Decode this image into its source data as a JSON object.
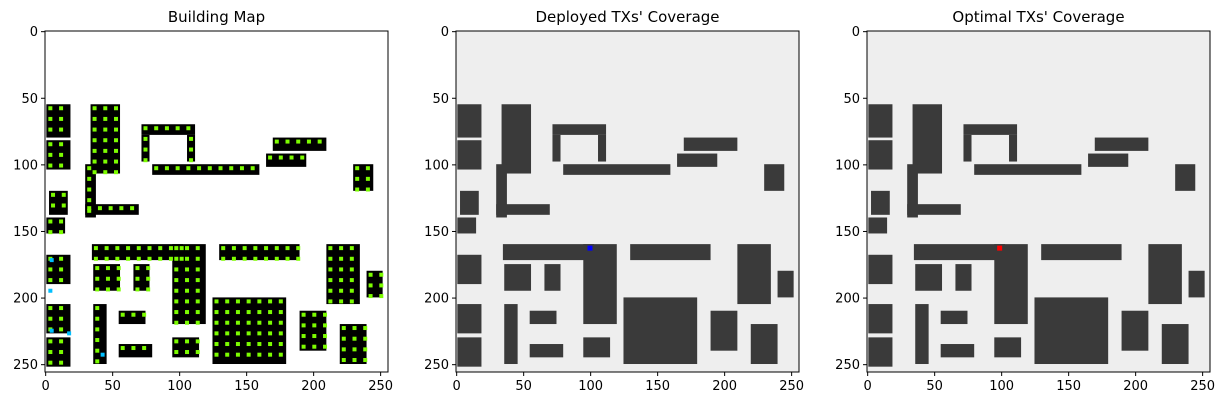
{
  "chart_data": [
    {
      "type": "heatmap",
      "title": "Building Map",
      "xlim": [
        0,
        255
      ],
      "ylim": [
        255,
        0
      ],
      "x_ticks": [
        0,
        50,
        100,
        150,
        200,
        250
      ],
      "y_ticks": [
        0,
        50,
        100,
        150,
        200,
        250
      ],
      "colors": {
        "background": "#ffffff",
        "building": "#000000",
        "candidate_point": "#7cfc00",
        "special_point": "#00bfff"
      }
    },
    {
      "type": "heatmap",
      "title": "Deployed TXs' Coverage",
      "xlim": [
        0,
        255
      ],
      "ylim": [
        255,
        0
      ],
      "x_ticks": [
        0,
        50,
        100,
        150,
        200,
        250
      ],
      "y_ticks": [
        0,
        50,
        100,
        150,
        200,
        250
      ],
      "tx_position": {
        "x": 100,
        "y": 163
      },
      "colors": {
        "background": "#eeeeee",
        "building": "#3a3a3a",
        "tx_marker": "#0000ff"
      }
    },
    {
      "type": "heatmap",
      "title": "Optimal TXs' Coverage",
      "xlim": [
        0,
        255
      ],
      "ylim": [
        255,
        0
      ],
      "x_ticks": [
        0,
        50,
        100,
        150,
        200,
        250
      ],
      "y_ticks": [
        0,
        50,
        100,
        150,
        200,
        250
      ],
      "tx_position": {
        "x": 99,
        "y": 163
      },
      "colors": {
        "background": "#eeeeee",
        "building": "#3a3a3a",
        "tx_marker": "#ff0000"
      }
    }
  ]
}
